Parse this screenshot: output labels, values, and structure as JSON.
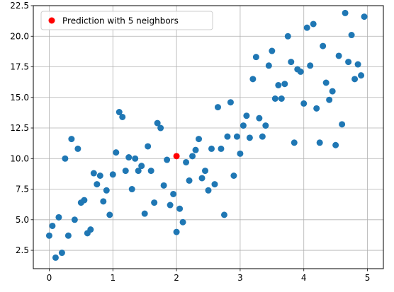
{
  "chart_data": {
    "type": "scatter",
    "title": "",
    "xlabel": "",
    "ylabel": "",
    "xlim": [
      -0.25,
      5.25
    ],
    "ylim": [
      1.0,
      22.5
    ],
    "xticks": [
      0,
      1,
      2,
      3,
      4,
      5
    ],
    "yticks": [
      2.5,
      5.0,
      7.5,
      10.0,
      12.5,
      15.0,
      17.5,
      20.0,
      22.5
    ],
    "xtick_labels": [
      "0",
      "1",
      "2",
      "3",
      "4",
      "5"
    ],
    "ytick_labels": [
      "2.5",
      "5.0",
      "7.5",
      "10.0",
      "12.5",
      "15.0",
      "17.5",
      "20.0",
      "22.5"
    ],
    "grid": true,
    "legend_position": "upper-left",
    "series": [
      {
        "color": "#1f77b4",
        "points": [
          [
            0.0,
            3.7
          ],
          [
            0.05,
            4.5
          ],
          [
            0.1,
            1.9
          ],
          [
            0.15,
            5.2
          ],
          [
            0.2,
            2.3
          ],
          [
            0.25,
            10.0
          ],
          [
            0.3,
            3.7
          ],
          [
            0.35,
            11.6
          ],
          [
            0.4,
            5.0
          ],
          [
            0.45,
            10.8
          ],
          [
            0.5,
            6.4
          ],
          [
            0.55,
            6.6
          ],
          [
            0.6,
            3.9
          ],
          [
            0.65,
            4.2
          ],
          [
            0.7,
            8.8
          ],
          [
            0.75,
            7.9
          ],
          [
            0.8,
            8.6
          ],
          [
            0.85,
            6.5
          ],
          [
            0.9,
            7.4
          ],
          [
            0.95,
            5.4
          ],
          [
            1.0,
            8.7
          ],
          [
            1.05,
            10.5
          ],
          [
            1.1,
            13.8
          ],
          [
            1.15,
            13.4
          ],
          [
            1.2,
            9.0
          ],
          [
            1.25,
            10.1
          ],
          [
            1.3,
            7.5
          ],
          [
            1.35,
            10.0
          ],
          [
            1.4,
            9.0
          ],
          [
            1.45,
            9.4
          ],
          [
            1.5,
            5.5
          ],
          [
            1.55,
            11.0
          ],
          [
            1.6,
            9.0
          ],
          [
            1.65,
            6.4
          ],
          [
            1.7,
            12.9
          ],
          [
            1.75,
            12.5
          ],
          [
            1.8,
            7.8
          ],
          [
            1.85,
            9.9
          ],
          [
            1.9,
            6.2
          ],
          [
            1.95,
            7.1
          ],
          [
            2.0,
            4.0
          ],
          [
            2.05,
            5.9
          ],
          [
            2.1,
            4.8
          ],
          [
            2.15,
            9.7
          ],
          [
            2.2,
            8.2
          ],
          [
            2.25,
            10.2
          ],
          [
            2.3,
            10.7
          ],
          [
            2.35,
            11.6
          ],
          [
            2.4,
            8.4
          ],
          [
            2.45,
            9.0
          ],
          [
            2.5,
            7.4
          ],
          [
            2.55,
            10.8
          ],
          [
            2.6,
            7.9
          ],
          [
            2.65,
            14.2
          ],
          [
            2.7,
            10.8
          ],
          [
            2.75,
            5.4
          ],
          [
            2.8,
            11.8
          ],
          [
            2.85,
            14.6
          ],
          [
            2.9,
            8.6
          ],
          [
            2.95,
            11.8
          ],
          [
            3.0,
            10.4
          ],
          [
            3.05,
            12.7
          ],
          [
            3.1,
            13.5
          ],
          [
            3.15,
            11.7
          ],
          [
            3.2,
            16.5
          ],
          [
            3.25,
            18.3
          ],
          [
            3.3,
            13.3
          ],
          [
            3.35,
            11.8
          ],
          [
            3.4,
            12.7
          ],
          [
            3.45,
            17.6
          ],
          [
            3.5,
            18.8
          ],
          [
            3.55,
            14.9
          ],
          [
            3.6,
            16.0
          ],
          [
            3.65,
            14.9
          ],
          [
            3.7,
            16.1
          ],
          [
            3.75,
            20.0
          ],
          [
            3.8,
            17.9
          ],
          [
            3.85,
            11.3
          ],
          [
            3.9,
            17.3
          ],
          [
            3.95,
            17.1
          ],
          [
            4.0,
            14.5
          ],
          [
            4.05,
            20.7
          ],
          [
            4.1,
            17.6
          ],
          [
            4.15,
            21.0
          ],
          [
            4.2,
            14.1
          ],
          [
            4.25,
            11.3
          ],
          [
            4.3,
            19.2
          ],
          [
            4.35,
            16.2
          ],
          [
            4.4,
            14.8
          ],
          [
            4.45,
            15.5
          ],
          [
            4.5,
            11.1
          ],
          [
            4.55,
            18.4
          ],
          [
            4.6,
            12.8
          ],
          [
            4.65,
            21.9
          ],
          [
            4.7,
            17.9
          ],
          [
            4.75,
            20.1
          ],
          [
            4.8,
            16.5
          ],
          [
            4.85,
            17.7
          ],
          [
            4.9,
            16.8
          ],
          [
            4.95,
            21.6
          ]
        ]
      },
      {
        "name": "Prediction with 5 neighbors",
        "color": "#ff0000",
        "points": [
          [
            2.0,
            10.2
          ]
        ]
      }
    ]
  }
}
